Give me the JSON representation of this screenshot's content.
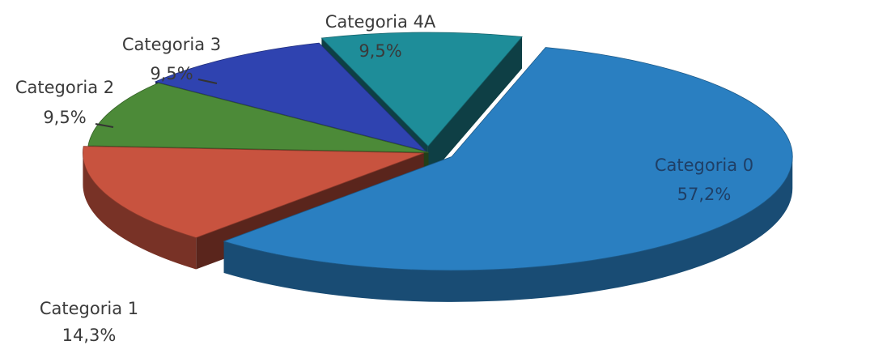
{
  "chart_data": {
    "type": "pie",
    "style": "3d-exploded",
    "title": "",
    "slices": [
      {
        "label": "Categoria 0",
        "value_label": "57,2%",
        "value": 57.2,
        "color": "#2a7fc1"
      },
      {
        "label": "Categoria 1",
        "value_label": "14,3%",
        "value": 14.3,
        "color": "#c8533f"
      },
      {
        "label": "Categoria 2",
        "value_label": "9,5%",
        "value": 9.5,
        "color": "#4c8a38"
      },
      {
        "label": "Categoria 3",
        "value_label": "9,5%",
        "value": 9.5,
        "color": "#2f43b0"
      },
      {
        "label": "Categoria 4A",
        "value_label": "9,5%",
        "value": 9.5,
        "color": "#1e8d99"
      }
    ]
  }
}
